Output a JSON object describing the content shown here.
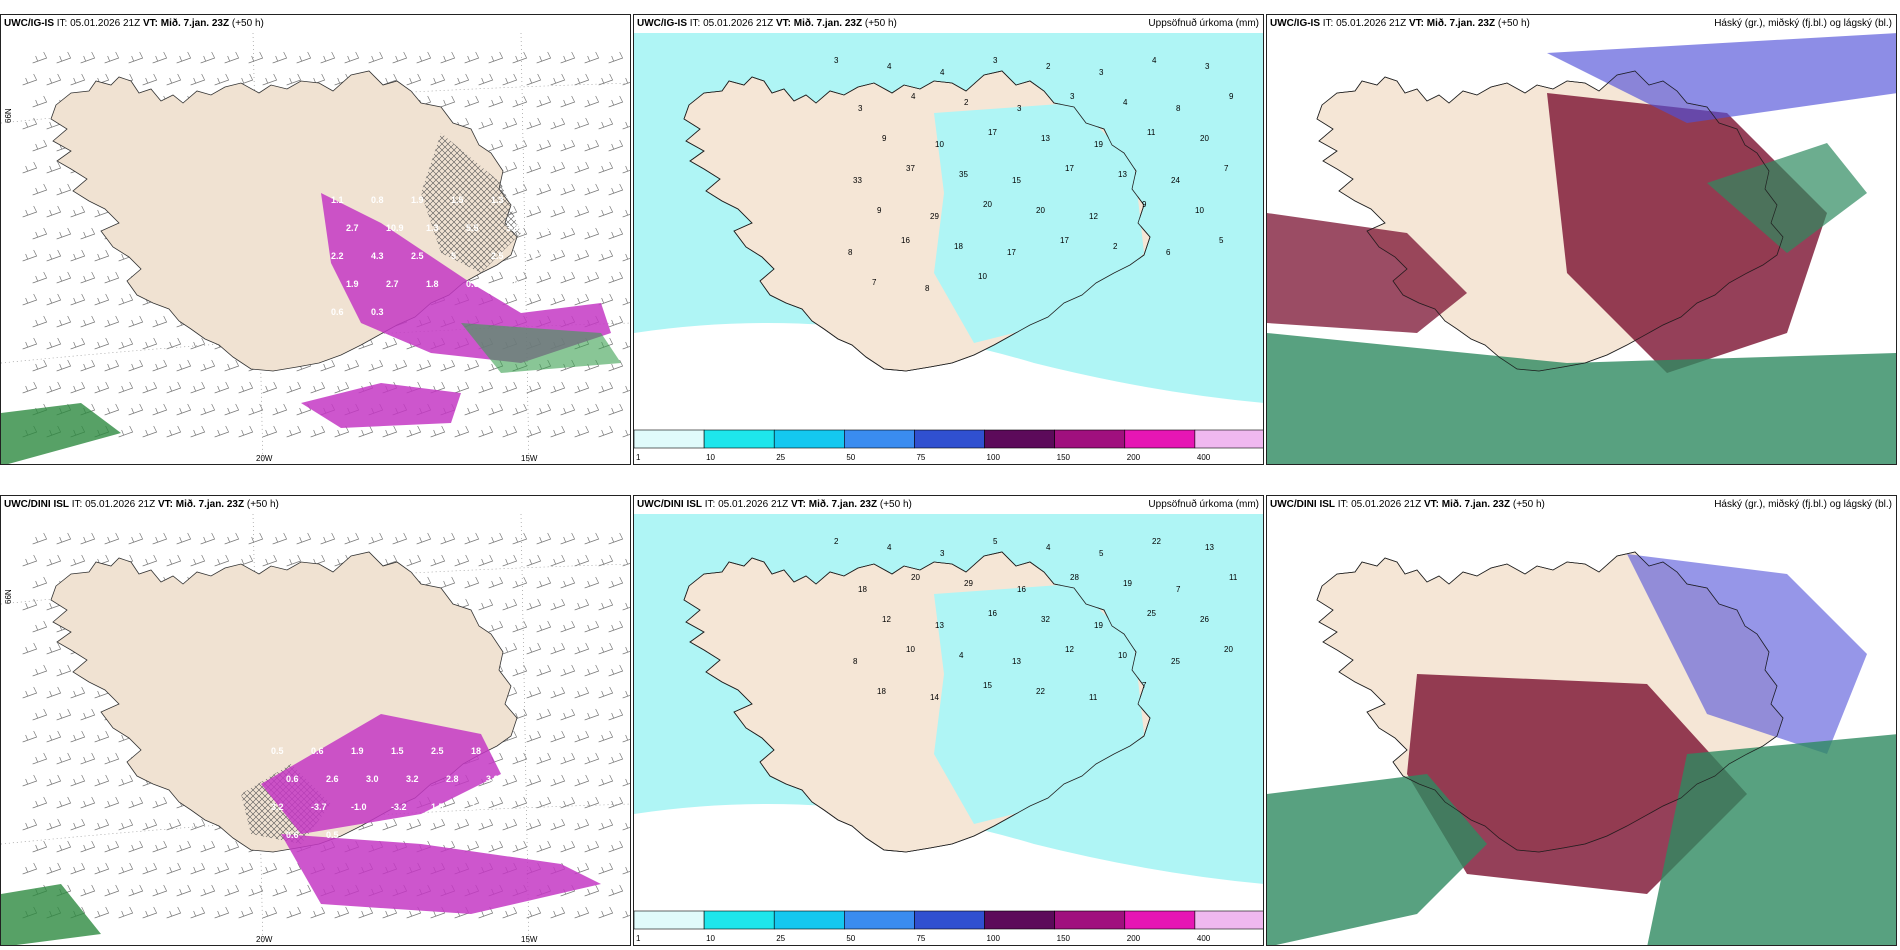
{
  "panels": [
    {
      "id": "p1",
      "model": "UWC/IG-IS",
      "it_label": "IT:",
      "it": "05.01.2026 21Z",
      "vt_label": "VT:",
      "vt": "Mið. 7.jan. 23Z",
      "lead": "(+50 h)",
      "right_title": "",
      "kind": "wind"
    },
    {
      "id": "p2",
      "model": "UWC/IG-IS",
      "it_label": "IT:",
      "it": "05.01.2026 21Z",
      "vt_label": "VT:",
      "vt": "Mið. 7.jan. 23Z",
      "lead": "(+50 h)",
      "right_title": "Uppsöfnuð úrkoma (mm)",
      "kind": "precip"
    },
    {
      "id": "p3",
      "model": "UWC/IG-IS",
      "it_label": "IT:",
      "it": "05.01.2026 21Z",
      "vt_label": "VT:",
      "vt": "Mið. 7.jan. 23Z",
      "lead": "(+50 h)",
      "right_title": "Háský (gr.), miðský (fj.bl.) og lágský (bl.)",
      "kind": "cloud"
    },
    {
      "id": "p4",
      "model": "UWC/DINI ISL",
      "it_label": "IT:",
      "it": "05.01.2026 21Z",
      "vt_label": "VT:",
      "vt": "Mið. 7.jan. 23Z",
      "lead": "(+50 h)",
      "right_title": "",
      "kind": "wind"
    },
    {
      "id": "p5",
      "model": "UWC/DINI ISL",
      "it_label": "IT:",
      "it": "05.01.2026 21Z",
      "vt_label": "VT:",
      "vt": "Mið. 7.jan. 23Z",
      "lead": "(+50 h)",
      "right_title": "Uppsöfnuð úrkoma (mm)",
      "kind": "precip"
    },
    {
      "id": "p6",
      "model": "UWC/DINI ISL",
      "it_label": "IT:",
      "it": "05.01.2026 21Z",
      "vt_label": "VT:",
      "vt": "Mið. 7.jan. 23Z",
      "lead": "(+50 h)",
      "right_title": "Háský (gr.), miðský (fj.bl.) og lágský (bl.)",
      "kind": "cloud"
    }
  ],
  "legend": {
    "ticks": [
      "1",
      "10",
      "25",
      "50",
      "75",
      "100",
      "150",
      "200",
      "400"
    ],
    "colors": [
      "#e0fbfb",
      "#1ee6ec",
      "#14c8f0",
      "#3a8cf0",
      "#3050d0",
      "#5c0a5a",
      "#a0107e",
      "#e616b4",
      "#f0b8f0"
    ]
  },
  "axis_labels": {
    "lat": "66N",
    "lon1": "20W",
    "lon2": "15W"
  },
  "wind_labels_top": [
    "1.1",
    "0.8",
    "1.9",
    "1.5",
    "1.3",
    "2.2",
    "2.7",
    "10.9",
    "1.3",
    "5.5",
    "3.8",
    "2.8",
    "2.2",
    "4.3",
    "2.5",
    "5",
    "2.5",
    "3.2",
    "1.9",
    "2.7",
    "1.8",
    "0.6",
    "0.8",
    "0.5",
    "0.6",
    "0.3"
  ],
  "wind_labels_bottom": [
    "0.5",
    "0.6",
    "1.9",
    "1.5",
    "2.5",
    "18",
    "0.6",
    "2.6",
    "3.0",
    "3.2",
    "2.8",
    "3.0",
    "3.2",
    "-3.7",
    "-1.0",
    "-3.2",
    "1.5",
    "10.7",
    "0.6",
    "0.5"
  ],
  "precip_numbers_top": [
    "3",
    "4",
    "4",
    "3",
    "2",
    "3",
    "4",
    "3",
    "3",
    "4",
    "2",
    "3",
    "3",
    "4",
    "8",
    "9",
    "9",
    "10",
    "17",
    "13",
    "19",
    "11",
    "20",
    "33",
    "37",
    "35",
    "15",
    "17",
    "13",
    "24",
    "7",
    "9",
    "29",
    "20",
    "20",
    "12",
    "9",
    "10",
    "8",
    "16",
    "18",
    "17",
    "17",
    "2",
    "6",
    "5",
    "7",
    "8",
    "10"
  ],
  "precip_numbers_bottom": [
    "2",
    "4",
    "3",
    "5",
    "4",
    "5",
    "22",
    "13",
    "18",
    "20",
    "29",
    "16",
    "28",
    "19",
    "7",
    "11",
    "12",
    "13",
    "16",
    "32",
    "19",
    "25",
    "26",
    "8",
    "10",
    "4",
    "13",
    "12",
    "10",
    "25",
    "20",
    "18",
    "14",
    "15",
    "22",
    "11",
    "7"
  ],
  "colors": {
    "land": "#f5e6d6",
    "sea": "#ffffff",
    "cyan": "#aff5f5",
    "purple": "#c438c4",
    "darkred": "#7a1030",
    "green": "#2e8a60",
    "blue": "#5050d8"
  }
}
